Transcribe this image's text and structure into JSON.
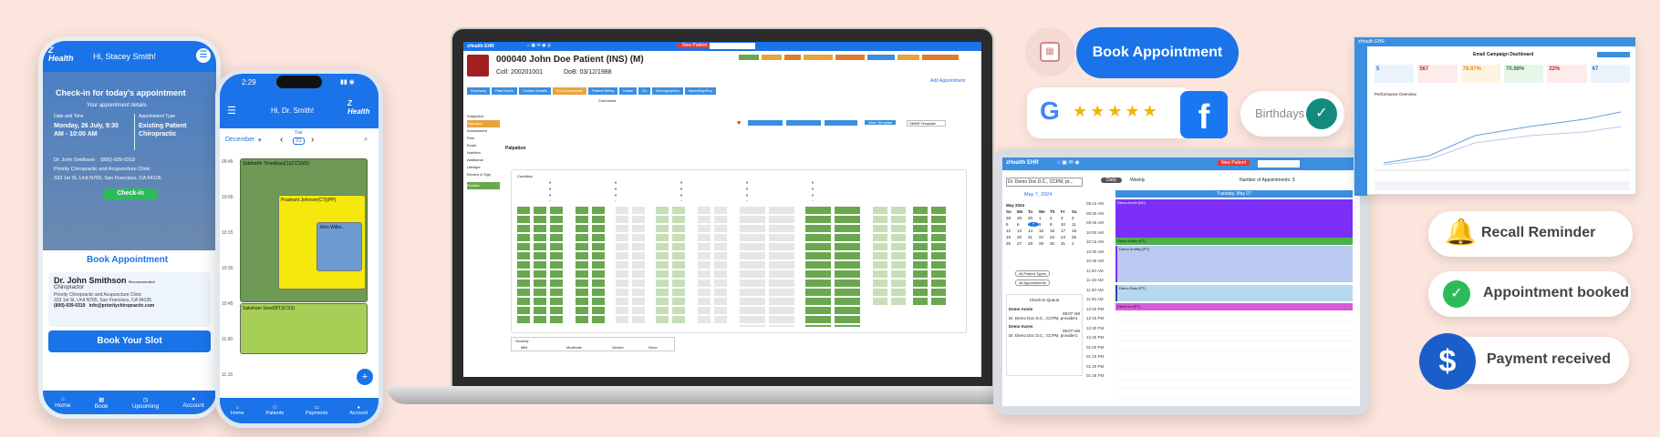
{
  "phone1": {
    "greeting": "Hi, Stacey Smith!",
    "logo": "Z Health",
    "checkin_title": "Check-in for today's appointment",
    "details_label": "Your appointment details",
    "date_label": "Date and Time",
    "date_value": "Monday, 26 July, 9:30 AM - 10:00 AM",
    "type_label": "Appointment Type",
    "type_value": "Existing Patient Chiropractic",
    "doctor": "Dr. John Smithson",
    "phone": "(800)-939-0319",
    "clinic": "Priority Chiropractic and Acupuncture Clinic",
    "address": "333 1st St, Unit N765, San Francisco, CA 94105",
    "checkin_button": "Check-in",
    "book_heading": "Book Appointment",
    "card_doctor": "Dr. John Smithson",
    "card_badge": "Recommended",
    "card_role": "Chiropractor",
    "card_clinic": "Priority Chiropractic and Acupuncture Clinic",
    "card_address": "333 1st St, Unit N765, San Francisco, CA 94105",
    "card_phone": "(800)-939-0319",
    "card_email": "info@prioritychiropractic.com",
    "book_button": "Book Your Slot",
    "nav": [
      "Home",
      "Book",
      "Upcoming",
      "Account"
    ]
  },
  "phone2": {
    "time": "2:29",
    "greeting": "Hi, Dr. Smith!",
    "logo": "Z Health",
    "month": "December",
    "day_name": "Tue",
    "day_num": "31",
    "times": [
      "09:45",
      "10:00",
      "10:15",
      "10:30",
      "10:45",
      "11:00",
      "11:15"
    ],
    "appt1": "Siddharth Trivedi(as)(1)(CC)(M2)",
    "appt2": "Prashant Johnson(CT)(PP)",
    "appt3": "John Willia...",
    "appt4": "Saksham Sood(BT)(CSS)",
    "nav": [
      "Home",
      "Patients",
      "Payments",
      "Account"
    ]
  },
  "laptop": {
    "app": "zHealth EHR",
    "new_patient": "New Patient",
    "patient_title": "000040 John Doe Patient (INS) (M)",
    "coll": "Coll: 200201001",
    "dob": "DoB: 03/12/1988",
    "add_appt": "Add Appointment",
    "tabs": [
      "Summary",
      "Past Notes",
      "Contact Details",
      "Eval Documents",
      "Patient Billing",
      "Intake",
      "Dx",
      "Demographics",
      "Marketing/Rep"
    ],
    "left_menu": [
      "Subjective",
      "Objective",
      "Assessment",
      "Plan",
      "Exam",
      "Nutrition",
      "Additional",
      "Lifestyle",
      "Review & Sign",
      "Finalize"
    ],
    "section": "Palpation",
    "condition_label": "Condition",
    "comments": "Comments",
    "severity": "Severity",
    "severity_opts": [
      "Mild",
      "Moderate",
      "Severe",
      "None"
    ],
    "template_btn": "Save Template",
    "smart_template": "SMAR Template"
  },
  "tablet": {
    "app": "zHealth EHR",
    "new_patient": "New Patient",
    "provider": "Dr. Demo Doc D.C., CCPM, pr...",
    "date": "May 7, 2024",
    "view_daily": "Daily",
    "view_weekly": "Weekly",
    "appts_label": "Number of Appointments: 3",
    "header_day": "Tuesday, May 07",
    "month_title": "May 2024",
    "weekdays": [
      "Su",
      "Mo",
      "Tu",
      "We",
      "Th",
      "Fr",
      "Sa"
    ],
    "days": [
      "28",
      "29",
      "30",
      "1",
      "2",
      "3",
      "4",
      "5",
      "6",
      "7",
      "8",
      "9",
      "10",
      "11",
      "12",
      "13",
      "14",
      "15",
      "16",
      "17",
      "18",
      "19",
      "20",
      "21",
      "22",
      "23",
      "24",
      "25",
      "26",
      "27",
      "28",
      "29",
      "30",
      "31",
      "1"
    ],
    "filter1": "All Patient Types",
    "filter2": "All Appointments",
    "checkin_title": "Check-in Queue",
    "q1_name": "Demo Annie",
    "q1_prov": "Dr. Demo Doc D.C., CCPM, provider1",
    "q1_time": "09:07 AM",
    "q2_name": "Demo Karen",
    "q2_prov": "Dr. Demo Doc D.C., CCPM, provider1",
    "q2_time": "09:07 AM",
    "times": [
      "09:15 AM",
      "09:30 AM",
      "09:45 AM",
      "10:00 AM",
      "10:15 AM",
      "10:30 AM",
      "10:45 AM",
      "11:00 AM",
      "11:15 AM",
      "11:30 AM",
      "11:45 AM",
      "12:00 PM",
      "12:15 PM",
      "12:30 PM",
      "12:45 PM",
      "01:00 PM",
      "01:15 PM",
      "01:30 PM",
      "01:45 PM"
    ],
    "ev1": "Demo Annie (NC)",
    "ev2": "Demo Karen (PT)",
    "ev3": "Demo Smithy (PT)",
    "ev4": "Demo Sam (PT)",
    "ev5": "Demo Lu (PT)"
  },
  "dashboard": {
    "logo": "zHealth EHR",
    "title": "Email Campaign Dashboard",
    "stats": [
      "5",
      "567",
      "78.87%",
      "70.98%",
      "22%",
      "67"
    ],
    "chart_title": "Performance Overview"
  },
  "widgets": {
    "book_appointment": "Book Appointment",
    "birthdays": "Birthdays",
    "recall": "Recall Reminder",
    "booked": "Appointment booked",
    "payment": "Payment received",
    "stars": "★★★★★"
  },
  "colors": {
    "primary": "#1a73e8",
    "green": "#6aa84f",
    "purple": "#7b2ff7",
    "background": "#fbe5dc"
  }
}
